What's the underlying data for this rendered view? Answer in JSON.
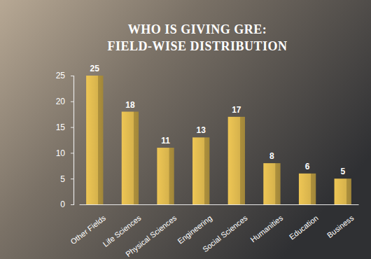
{
  "chart_data": {
    "type": "bar",
    "title": "WHO IS GIVING GRE: FIELD-WISE DISTRIBUTION",
    "categories": [
      "Other Fields",
      "Life Sciences",
      "Physical Sciences",
      "Engineering",
      "Social Sciences",
      "Humanities",
      "Education",
      "Business"
    ],
    "values": [
      25,
      18,
      11,
      13,
      17,
      8,
      6,
      5
    ],
    "color": "#d6b24c",
    "ylim": [
      0,
      25
    ],
    "yticks": [
      0,
      5,
      10,
      15,
      20,
      25
    ],
    "grid": false,
    "data_labels": true
  }
}
